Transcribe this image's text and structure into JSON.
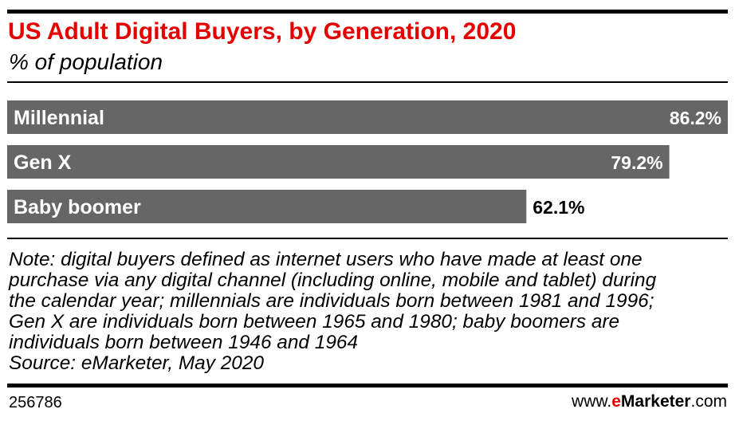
{
  "colors": {
    "title": "#e50000",
    "bar": "#666666",
    "bar_label_inside": "#ffffff",
    "bar_label_outside": "#000000",
    "rules": "#000000",
    "brand_accent": "#e50000"
  },
  "chart_data": {
    "type": "bar",
    "orientation": "horizontal",
    "title": "US Adult Digital Buyers, by Generation, 2020",
    "subtitle": "% of population",
    "categories": [
      "Millennial",
      "Gen X",
      "Baby boomer"
    ],
    "values": [
      86.2,
      79.2,
      62.1
    ],
    "value_labels": [
      "86.2%",
      "79.2%",
      "62.1%"
    ],
    "unit": "%",
    "xlim": [
      0,
      86.2
    ],
    "grid": false,
    "legend": "none"
  },
  "note_lines": [
    "Note: digital buyers defined as internet users who have made at least one",
    "purchase via any digital channel (including online, mobile and tablet) during",
    "the calendar year; millennials are individuals born between 1981 and 1996;",
    "Gen X are individuals born between 1965 and 1980; baby boomers are",
    "individuals born between 1946 and 1964",
    "Source: eMarketer, May 2020"
  ],
  "footer": {
    "chart_id": "256786",
    "brand_prefix": "www.",
    "brand_accent": "e",
    "brand_name": "Marketer",
    "brand_suffix": ".com"
  }
}
